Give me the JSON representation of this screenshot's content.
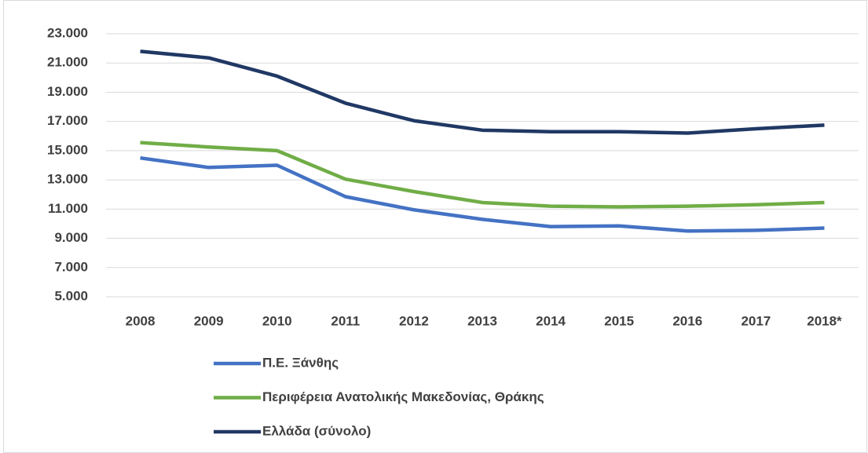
{
  "chart_data": {
    "type": "line",
    "categories": [
      "2008",
      "2009",
      "2010",
      "2011",
      "2012",
      "2013",
      "2014",
      "2015",
      "2016",
      "2017",
      "2018*"
    ],
    "series": [
      {
        "name": "Π.Ε. Ξάνθης",
        "color": "#4472c4",
        "values": [
          14500,
          13850,
          14000,
          11850,
          10950,
          10300,
          9800,
          9850,
          9500,
          9550,
          9700
        ]
      },
      {
        "name": "Περιφέρεια Ανατολικής Μακεδονίας, Θράκης",
        "color": "#70ad47",
        "values": [
          15550,
          15250,
          15000,
          13050,
          12200,
          11450,
          11200,
          11150,
          11200,
          11300,
          11450
        ]
      },
      {
        "name": "Ελλάδα (σύνολο)",
        "color": "#203864",
        "values": [
          21800,
          21350,
          20100,
          18250,
          17050,
          16400,
          16300,
          16300,
          16200,
          16500,
          16750
        ]
      }
    ],
    "ylim": [
      5000,
      23000
    ],
    "yticks": [
      {
        "value": 5000,
        "label": "5.000"
      },
      {
        "value": 7000,
        "label": "7.000"
      },
      {
        "value": 9000,
        "label": "9.000"
      },
      {
        "value": 11000,
        "label": "11.000"
      },
      {
        "value": 13000,
        "label": "13.000"
      },
      {
        "value": 15000,
        "label": "15.000"
      },
      {
        "value": 17000,
        "label": "17.000"
      },
      {
        "value": 19000,
        "label": "19.000"
      },
      {
        "value": 21000,
        "label": "21.000"
      },
      {
        "value": 23000,
        "label": "23.000"
      }
    ],
    "grid": true,
    "legend": "bottom"
  }
}
